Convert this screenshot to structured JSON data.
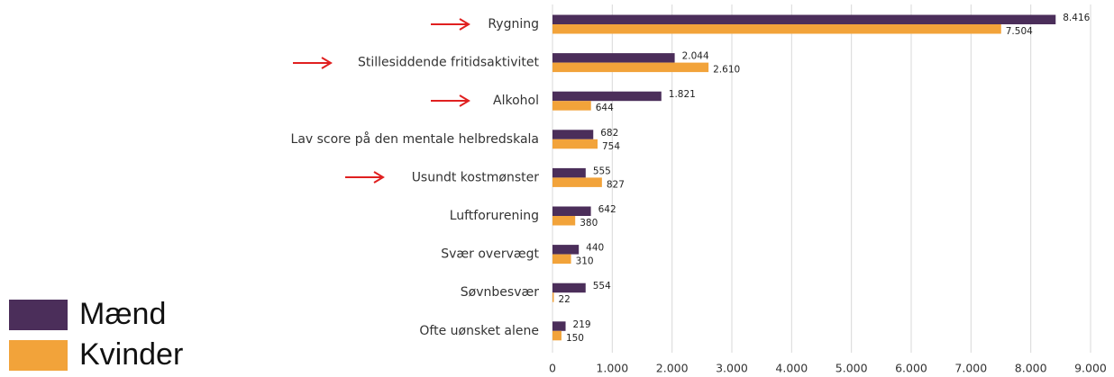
{
  "chart_data": {
    "type": "bar",
    "orientation": "horizontal",
    "categories": [
      "Rygning",
      "Stillesiddende fritidsaktivitet",
      "Alkohol",
      "Lav score på den mentale helbredskala",
      "Usundt kostmønster",
      "Luftforurening",
      "Svær overvægt",
      "Søvnbesvær",
      "Ofte uønsket alene"
    ],
    "series": [
      {
        "name": "Mænd",
        "color": "#4b2e5a",
        "values": [
          8416,
          2044,
          1821,
          682,
          555,
          642,
          440,
          554,
          219
        ],
        "value_labels": [
          "8.416",
          "2.044",
          "1.821",
          "682",
          "555",
          "642",
          "440",
          "554",
          "219"
        ]
      },
      {
        "name": "Kvinder",
        "color": "#f2a33a",
        "values": [
          7504,
          2610,
          644,
          754,
          827,
          380,
          310,
          22,
          150
        ],
        "value_labels": [
          "7.504",
          "2.610",
          "644",
          "754",
          "827",
          "380",
          "310",
          "22",
          "150"
        ]
      }
    ],
    "xlim": [
      0,
      9000
    ],
    "xticks": [
      0,
      {
        "value": 1000,
        "label": "1.000"
      },
      {
        "value": 2000,
        "label": "2.000"
      },
      {
        "value": 3000,
        "label": "3.000"
      },
      {
        "value": 4000,
        "label": "4.000"
      },
      {
        "value": 5000,
        "label": "5.000"
      },
      {
        "value": 6000,
        "label": "6.000"
      },
      {
        "value": 7000,
        "label": "7.000"
      },
      {
        "value": 8000,
        "label": "8.000"
      },
      {
        "value": 9000,
        "label": "9.000"
      }
    ],
    "grid": true,
    "legend": "bottom-left"
  }
}
